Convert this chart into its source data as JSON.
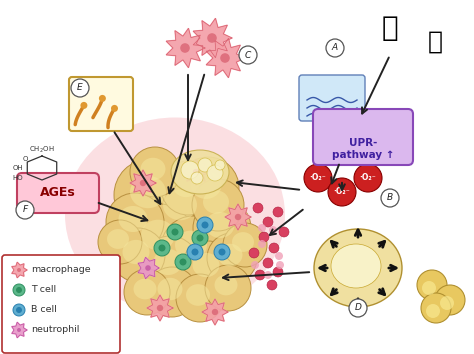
{
  "bg_color": "#ffffff",
  "legend_items": [
    {
      "label": "macrophage",
      "color": "#f4a0a8",
      "edge": "#d86070"
    },
    {
      "label": "T cell",
      "color": "#5cb88a",
      "edge": "#2e9060"
    },
    {
      "label": "B cell",
      "color": "#60aed0",
      "edge": "#2880b0"
    },
    {
      "label": "neutrophil",
      "color": "#e898c8",
      "edge": "#c050a0"
    }
  ],
  "ages_text": "AGEs",
  "upr_text": "UPR-\npathway ↑",
  "o2_text": "·O₂⁻",
  "adipo_color": "#e8c87a",
  "adipo_edge": "#b89040",
  "adipo_inner": "#f5e8a0",
  "glow_color": "#f8b8c0",
  "foam_color": "#f0e0a0",
  "foam_edge": "#c8b050"
}
